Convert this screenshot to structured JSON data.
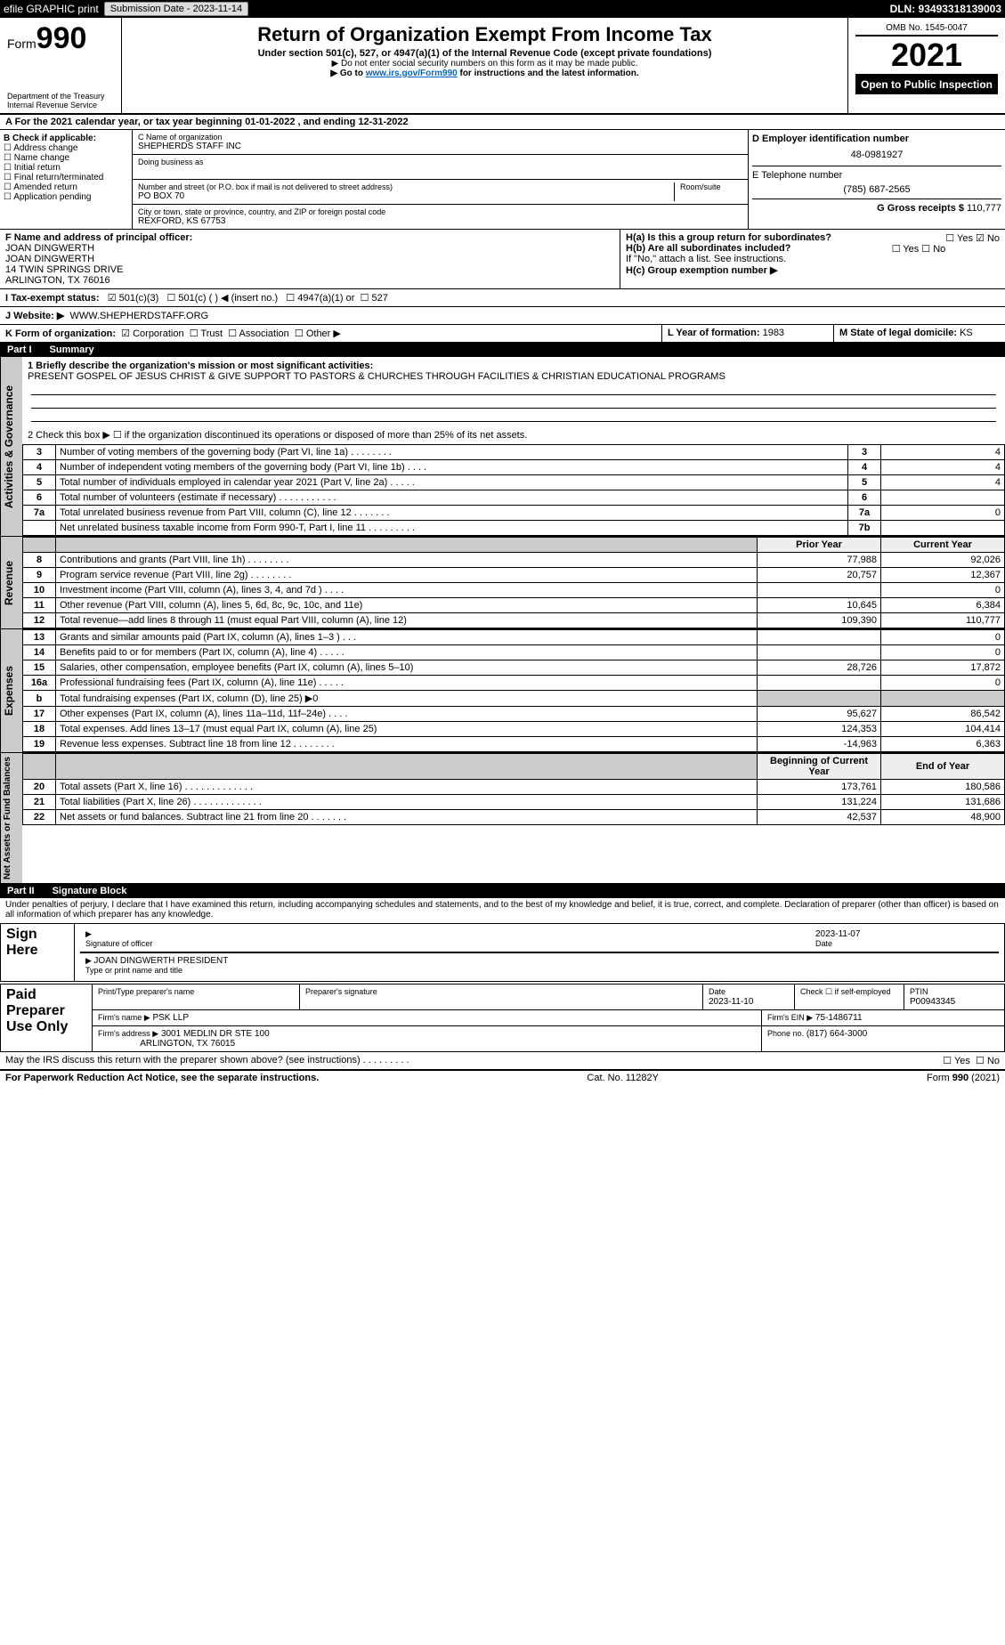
{
  "topbar": {
    "efile": "efile GRAPHIC print",
    "submission_label": "Submission Date - 2023-11-14",
    "dln": "DLN: 93493318139003"
  },
  "header": {
    "form_prefix": "Form",
    "form_number": "990",
    "dept1": "Department of the Treasury",
    "dept2": "Internal Revenue Service",
    "title": "Return of Organization Exempt From Income Tax",
    "subtitle": "Under section 501(c), 527, or 4947(a)(1) of the Internal Revenue Code (except private foundations)",
    "note1": "▶ Do not enter social security numbers on this form as it may be made public.",
    "note2_pre": "▶ Go to ",
    "note2_link": "www.irs.gov/Form990",
    "note2_post": " for instructions and the latest information.",
    "omb": "OMB No. 1545-0047",
    "year": "2021",
    "open": "Open to Public Inspection"
  },
  "rowA": "A For the 2021 calendar year, or tax year beginning 01-01-2022    , and ending 12-31-2022",
  "boxB": {
    "title": "B Check if applicable:",
    "items": [
      "Address change",
      "Name change",
      "Initial return",
      "Final return/terminated",
      "Amended return",
      "Application pending"
    ]
  },
  "boxC": {
    "name_label": "C Name of organization",
    "name": "SHEPHERDS STAFF INC",
    "dba_label": "Doing business as",
    "addr_label": "Number and street (or P.O. box if mail is not delivered to street address)",
    "room_label": "Room/suite",
    "addr": "PO BOX 70",
    "city_label": "City or town, state or province, country, and ZIP or foreign postal code",
    "city": "REXFORD, KS  67753"
  },
  "boxD": {
    "ein_label": "D Employer identification number",
    "ein": "48-0981927",
    "phone_label": "E Telephone number",
    "phone": "(785) 687-2565",
    "gross_label": "G Gross receipts $",
    "gross": "110,777"
  },
  "boxF": {
    "label": "F  Name and address of principal officer:",
    "lines": [
      "JOAN DINGWERTH",
      "JOAN DINGWERTH",
      "14 TWIN SPRINGS DRIVE",
      "ARLINGTON, TX  76016"
    ]
  },
  "boxH": {
    "a_label": "H(a)  Is this a group return for subordinates?",
    "a_yes": "Yes",
    "a_no": "No",
    "b_label": "H(b)  Are all subordinates included?",
    "b_note": "If \"No,\" attach a list. See instructions.",
    "c_label": "H(c)  Group exemption number ▶"
  },
  "rowI": {
    "label": "I   Tax-exempt status:",
    "opt1": "501(c)(3)",
    "opt2": "501(c) (  ) ◀ (insert no.)",
    "opt3": "4947(a)(1) or",
    "opt4": "527"
  },
  "rowJ": {
    "label": "J  Website: ▶",
    "value": "WWW.SHEPHERDSTAFF.ORG"
  },
  "rowK": {
    "label": "K Form of organization:",
    "opts": [
      "Corporation",
      "Trust",
      "Association",
      "Other ▶"
    ],
    "l_label": "L Year of formation:",
    "l_val": "1983",
    "m_label": "M State of legal domicile:",
    "m_val": "KS"
  },
  "part1": {
    "tag": "Part I",
    "title": "Summary"
  },
  "summary_mission_label": "1  Briefly describe the organization's mission or most significant activities:",
  "summary_mission": "PRESENT GOSPEL OF JESUS CHRIST & GIVE SUPPORT TO PASTORS & CHURCHES THROUGH FACILITIES & CHRISTIAN EDUCATIONAL PROGRAMS",
  "line2": "2   Check this box ▶ ☐  if the organization discontinued its operations or disposed of more than 25% of its net assets.",
  "gov_lines": [
    {
      "n": "3",
      "t": "Number of voting members of the governing body (Part VI, line 1a)  .    .    .    .    .    .    .    .",
      "box": "3",
      "v": "4"
    },
    {
      "n": "4",
      "t": "Number of independent voting members of the governing body (Part VI, line 1b)   .    .    .    .",
      "box": "4",
      "v": "4"
    },
    {
      "n": "5",
      "t": "Total number of individuals employed in calendar year 2021 (Part V, line 2a)   .    .    .    .    .",
      "box": "5",
      "v": "4"
    },
    {
      "n": "6",
      "t": "Total number of volunteers (estimate if necessary)    .    .    .    .    .    .    .    .    .    .    .",
      "box": "6",
      "v": ""
    },
    {
      "n": "7a",
      "t": "Total unrelated business revenue from Part VIII, column (C), line 12   .    .    .    .    .    .    .",
      "box": "7a",
      "v": "0"
    },
    {
      "n": "",
      "t": "Net unrelated business taxable income from Form 990-T, Part I, line 11   .    .    .    .    .    .    .    .    .",
      "box": "7b",
      "v": ""
    }
  ],
  "rev_hdr_prior": "Prior Year",
  "rev_hdr_curr": "Current Year",
  "rev_lines": [
    {
      "n": "8",
      "t": "Contributions and grants (Part VIII, line 1h)   .    .    .    .    .    .    .    .",
      "p": "77,988",
      "c": "92,026"
    },
    {
      "n": "9",
      "t": "Program service revenue (Part VIII, line 2g)   .    .    .    .    .    .    .    .",
      "p": "20,757",
      "c": "12,367"
    },
    {
      "n": "10",
      "t": "Investment income (Part VIII, column (A), lines 3, 4, and 7d )   .    .    .    .",
      "p": "",
      "c": "0"
    },
    {
      "n": "11",
      "t": "Other revenue (Part VIII, column (A), lines 5, 6d, 8c, 9c, 10c, and 11e)",
      "p": "10,645",
      "c": "6,384"
    },
    {
      "n": "12",
      "t": "Total revenue—add lines 8 through 11 (must equal Part VIII, column (A), line 12)",
      "p": "109,390",
      "c": "110,777"
    }
  ],
  "exp_lines": [
    {
      "n": "13",
      "t": "Grants and similar amounts paid (Part IX, column (A), lines 1–3 )   .    .    .",
      "p": "",
      "c": "0"
    },
    {
      "n": "14",
      "t": "Benefits paid to or for members (Part IX, column (A), line 4)   .    .    .    .    .",
      "p": "",
      "c": "0"
    },
    {
      "n": "15",
      "t": "Salaries, other compensation, employee benefits (Part IX, column (A), lines 5–10)",
      "p": "28,726",
      "c": "17,872"
    },
    {
      "n": "16a",
      "t": "Professional fundraising fees (Part IX, column (A), line 11e)   .    .    .    .    .",
      "p": "",
      "c": "0"
    },
    {
      "n": "b",
      "t": "Total fundraising expenses (Part IX, column (D), line 25) ▶0",
      "p": "GRAY",
      "c": "GRAY"
    },
    {
      "n": "17",
      "t": "Other expenses (Part IX, column (A), lines 11a–11d, 11f–24e)   .    .    .    .",
      "p": "95,627",
      "c": "86,542"
    },
    {
      "n": "18",
      "t": "Total expenses. Add lines 13–17 (must equal Part IX, column (A), line 25)",
      "p": "124,353",
      "c": "104,414"
    },
    {
      "n": "19",
      "t": "Revenue less expenses. Subtract line 18 from line 12   .    .    .    .    .    .    .    .",
      "p": "-14,963",
      "c": "6,363"
    }
  ],
  "net_hdr_prior": "Beginning of Current Year",
  "net_hdr_curr": "End of Year",
  "net_lines": [
    {
      "n": "20",
      "t": "Total assets (Part X, line 16)   .    .    .    .    .    .    .    .    .    .    .    .    .",
      "p": "173,761",
      "c": "180,586"
    },
    {
      "n": "21",
      "t": "Total liabilities (Part X, line 26)   .    .    .    .    .    .    .    .    .    .    .    .    .",
      "p": "131,224",
      "c": "131,686"
    },
    {
      "n": "22",
      "t": "Net assets or fund balances. Subtract line 21 from line 20   .    .    .    .    .    .    .",
      "p": "42,537",
      "c": "48,900"
    }
  ],
  "vtabs": {
    "gov": "Activities & Governance",
    "rev": "Revenue",
    "exp": "Expenses",
    "net": "Net Assets or Fund Balances"
  },
  "part2": {
    "tag": "Part II",
    "title": "Signature Block"
  },
  "sig_decl": "Under penalties of perjury, I declare that I have examined this return, including accompanying schedules and statements, and to the best of my knowledge and belief, it is true, correct, and complete. Declaration of preparer (other than officer) is based on all information of which preparer has any knowledge.",
  "sign": {
    "here": "Sign Here",
    "sig_officer": "Signature of officer",
    "date": "2023-11-07",
    "date_lbl": "Date",
    "name": "JOAN DINGWERTH  PRESIDENT",
    "name_lbl": "Type or print name and title"
  },
  "prep": {
    "title": "Paid Preparer Use Only",
    "h1": "Print/Type preparer's name",
    "h2": "Preparer's signature",
    "h3": "Date",
    "h3v": "2023-11-10",
    "h4": "Check ☐ if self-employed",
    "h5": "PTIN",
    "h5v": "P00943345",
    "firm_lbl": "Firm's name    ▶",
    "firm": "PSK LLP",
    "ein_lbl": "Firm's EIN ▶",
    "ein": "75-1486711",
    "addr_lbl": "Firm's address ▶",
    "addr1": "3001 MEDLIN DR STE 100",
    "addr2": "ARLINGTON, TX  76015",
    "phone_lbl": "Phone no.",
    "phone": "(817) 664-3000"
  },
  "discuss": "May the IRS discuss this return with the preparer shown above? (see instructions)   .    .    .    .    .    .    .    .    .",
  "discuss_yes": "Yes",
  "discuss_no": "No",
  "footer": {
    "l": "For Paperwork Reduction Act Notice, see the separate instructions.",
    "m": "Cat. No. 11282Y",
    "r": "Form 990 (2021)"
  }
}
